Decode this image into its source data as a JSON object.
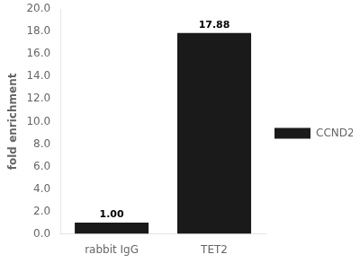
{
  "chart_data": {
    "type": "bar",
    "categories": [
      "rabbit IgG",
      "TET2"
    ],
    "series": [
      {
        "name": "CCND2",
        "color": "#1a1a1a",
        "values": [
          1.0,
          17.88
        ],
        "value_labels": [
          "1.00",
          "17.88"
        ]
      }
    ],
    "ylabel": "fold enrichment",
    "ylim": [
      0,
      20.0
    ],
    "yticks": [
      {
        "value": 0.0,
        "label": "0.0"
      },
      {
        "value": 2.0,
        "label": "2.0"
      },
      {
        "value": 4.0,
        "label": "4.0"
      },
      {
        "value": 6.0,
        "label": "6.0"
      },
      {
        "value": 8.0,
        "label": "8.0"
      },
      {
        "value": 10.0,
        "label": "10.0"
      },
      {
        "value": 12.0,
        "label": "12.0"
      },
      {
        "value": 14.0,
        "label": "14.0"
      },
      {
        "value": 16.0,
        "label": "16.0"
      },
      {
        "value": 18.0,
        "label": "18.0"
      },
      {
        "value": 20.0,
        "label": "20.0"
      }
    ],
    "data_labels": true,
    "legend": "right",
    "grid": false
  }
}
